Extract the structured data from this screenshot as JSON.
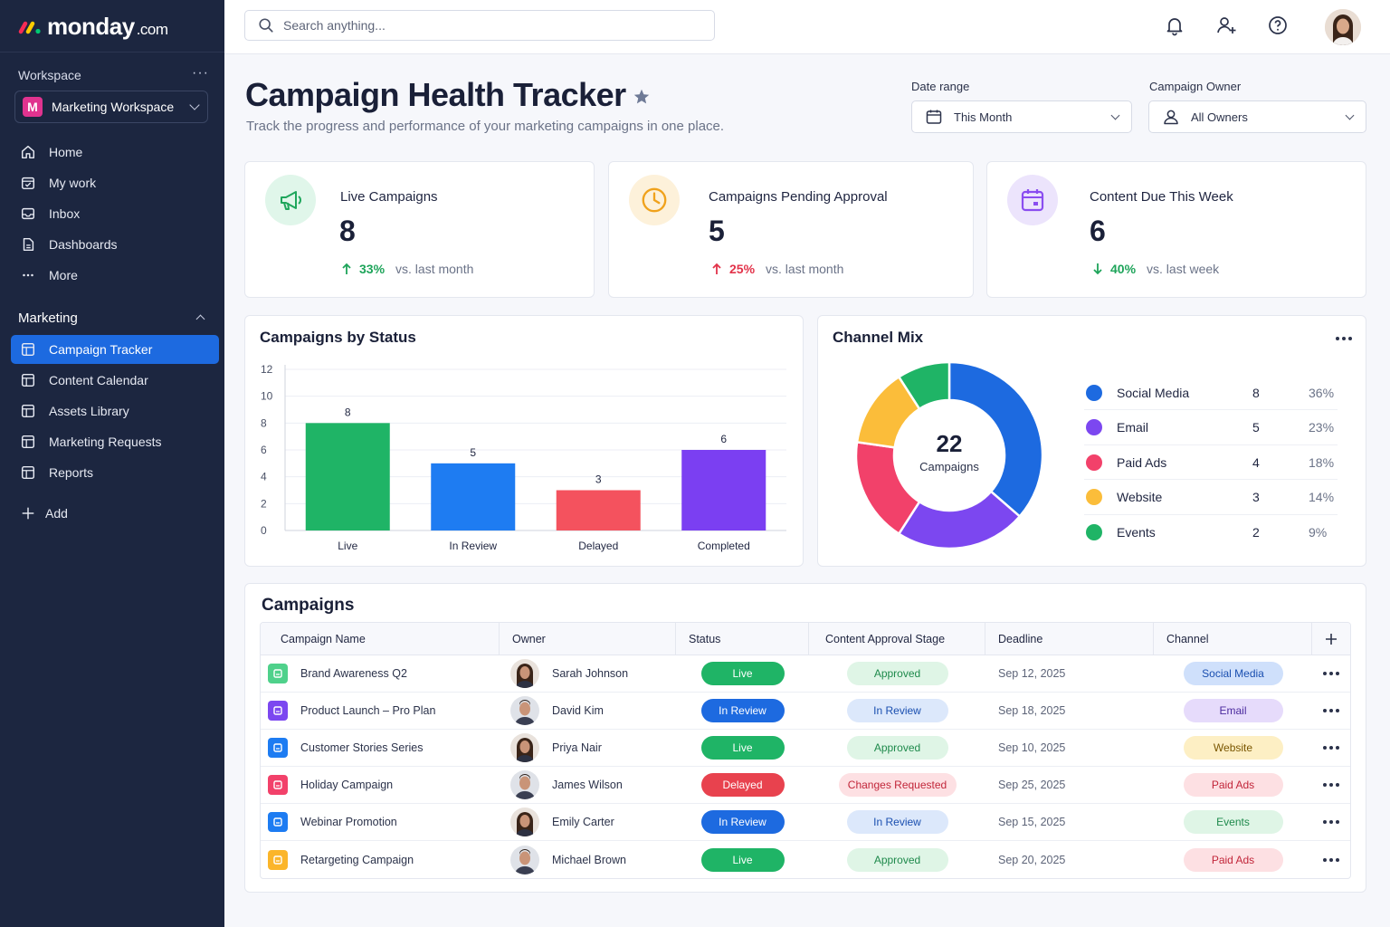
{
  "app": {
    "brand": "monday",
    "brand_suffix": ".com"
  },
  "sidebar": {
    "workspace_label": "Workspace",
    "workspace_badge": "M",
    "workspace_name": "Marketing Workspace",
    "nav": [
      {
        "label": "Home",
        "icon": "home-icon"
      },
      {
        "label": "My work",
        "icon": "calendar-check-icon"
      },
      {
        "label": "Inbox",
        "icon": "inbox-icon"
      },
      {
        "label": "Dashboards",
        "icon": "dashboard-icon"
      },
      {
        "label": "More",
        "icon": "more-icon"
      }
    ],
    "section_title": "Marketing",
    "boards": [
      {
        "label": "Campaign Tracker",
        "active": true
      },
      {
        "label": "Content Calendar",
        "active": false
      },
      {
        "label": "Assets Library",
        "active": false
      },
      {
        "label": "Marketing Requests",
        "active": false
      },
      {
        "label": "Reports",
        "active": false
      }
    ],
    "add_label": "Add"
  },
  "topbar": {
    "search_placeholder": "Search anything..."
  },
  "header": {
    "title": "Campaign Health Tracker",
    "subtitle": "Track the progress and performance of your marketing campaigns in one place.",
    "date_range_label": "Date range",
    "date_range_value": "This Month",
    "owner_label": "Campaign Owner",
    "owner_value": "All Owners"
  },
  "kpis": [
    {
      "label": "Live Campaigns",
      "value": "8",
      "delta": "33%",
      "direction": "up",
      "compare": "vs. last month",
      "delta_color": "#1ea45a",
      "icon": "megaphone-icon"
    },
    {
      "label": "Campaigns Pending Approval",
      "value": "5",
      "delta": "25%",
      "direction": "up",
      "compare": "vs. last month",
      "delta_color": "#e2334a",
      "icon": "clock-icon"
    },
    {
      "label": "Content Due This Week",
      "value": "6",
      "delta": "40%",
      "direction": "down",
      "compare": "vs. last week",
      "delta_color": "#1ea45a",
      "icon": "calendar-icon"
    }
  ],
  "chart_data": [
    {
      "type": "bar",
      "title": "Campaigns by Status",
      "categories": [
        "Live",
        "In Review",
        "Delayed",
        "Completed"
      ],
      "values": [
        8,
        5,
        3,
        6
      ],
      "colors": [
        "#1fb466",
        "#1e7cf2",
        "#f4525e",
        "#7b3ff2"
      ],
      "ylim": [
        0,
        12
      ],
      "yticks": [
        0,
        2,
        4,
        6,
        8,
        10,
        12
      ],
      "grid": true
    },
    {
      "type": "pie",
      "title": "Channel Mix",
      "center_value": "22",
      "center_label": "Campaigns",
      "labels": [
        "Social Media",
        "Email",
        "Paid Ads",
        "Website",
        "Events"
      ],
      "values": [
        8,
        5,
        4,
        3,
        2
      ],
      "percents": [
        "36%",
        "23%",
        "18%",
        "14%",
        "9%"
      ],
      "colors": [
        "#1d6ae0",
        "#7c47f0",
        "#f2416a",
        "#fbbd3a",
        "#1fb466"
      ],
      "legend": "right"
    }
  ],
  "campaigns": {
    "title": "Campaigns",
    "columns": [
      "Campaign Name",
      "Owner",
      "Status",
      "Content Approval Stage",
      "Deadline",
      "Channel"
    ],
    "rows": [
      {
        "name": "Brand Awareness Q2",
        "icon_color": "#4fd18b",
        "owner": "Sarah Johnson",
        "owner_style": "f",
        "status": "Live",
        "status_color": "#1fb466",
        "approval": "Approved",
        "approval_bg": "#dff5e6",
        "approval_fg": "#1f8a4c",
        "deadline": "Sep 12, 2025",
        "channel": "Social Media",
        "channel_bg": "#cfe0fb",
        "channel_fg": "#1a4fb0"
      },
      {
        "name": "Product Launch – Pro Plan",
        "icon_color": "#7c47f0",
        "owner": "David Kim",
        "owner_style": "m",
        "status": "In Review",
        "status_color": "#1d6ae0",
        "approval": "In Review",
        "approval_bg": "#dce8fb",
        "approval_fg": "#1a4fb0",
        "deadline": "Sep 18, 2025",
        "channel": "Email",
        "channel_bg": "#e6dbfb",
        "channel_fg": "#4b2a9e"
      },
      {
        "name": "Customer Stories Series",
        "icon_color": "#1d7cf2",
        "owner": "Priya Nair",
        "owner_style": "f",
        "status": "Live",
        "status_color": "#1fb466",
        "approval": "Approved",
        "approval_bg": "#dff5e6",
        "approval_fg": "#1f8a4c",
        "deadline": "Sep 10, 2025",
        "channel": "Website",
        "channel_bg": "#fdefc4",
        "channel_fg": "#7a5600"
      },
      {
        "name": "Holiday Campaign",
        "icon_color": "#f2416a",
        "owner": "James Wilson",
        "owner_style": "m",
        "status": "Delayed",
        "status_color": "#e8424e",
        "approval": "Changes Requested",
        "approval_bg": "#fde0e3",
        "approval_fg": "#c2263a",
        "deadline": "Sep 25, 2025",
        "channel": "Paid Ads",
        "channel_bg": "#fde0e3",
        "channel_fg": "#c2263a"
      },
      {
        "name": "Webinar Promotion",
        "icon_color": "#1d7cf2",
        "owner": "Emily Carter",
        "owner_style": "f",
        "status": "In Review",
        "status_color": "#1d6ae0",
        "approval": "In Review",
        "approval_bg": "#dce8fb",
        "approval_fg": "#1a4fb0",
        "deadline": "Sep 15, 2025",
        "channel": "Events",
        "channel_bg": "#dff5e6",
        "channel_fg": "#1f8a4c"
      },
      {
        "name": "Retargeting Campaign",
        "icon_color": "#fbb52a",
        "owner": "Michael Brown",
        "owner_style": "m",
        "status": "Live",
        "status_color": "#1fb466",
        "approval": "Approved",
        "approval_bg": "#dff5e6",
        "approval_fg": "#1f8a4c",
        "deadline": "Sep 20, 2025",
        "channel": "Paid Ads",
        "channel_bg": "#fde0e3",
        "channel_fg": "#c2263a"
      }
    ]
  }
}
